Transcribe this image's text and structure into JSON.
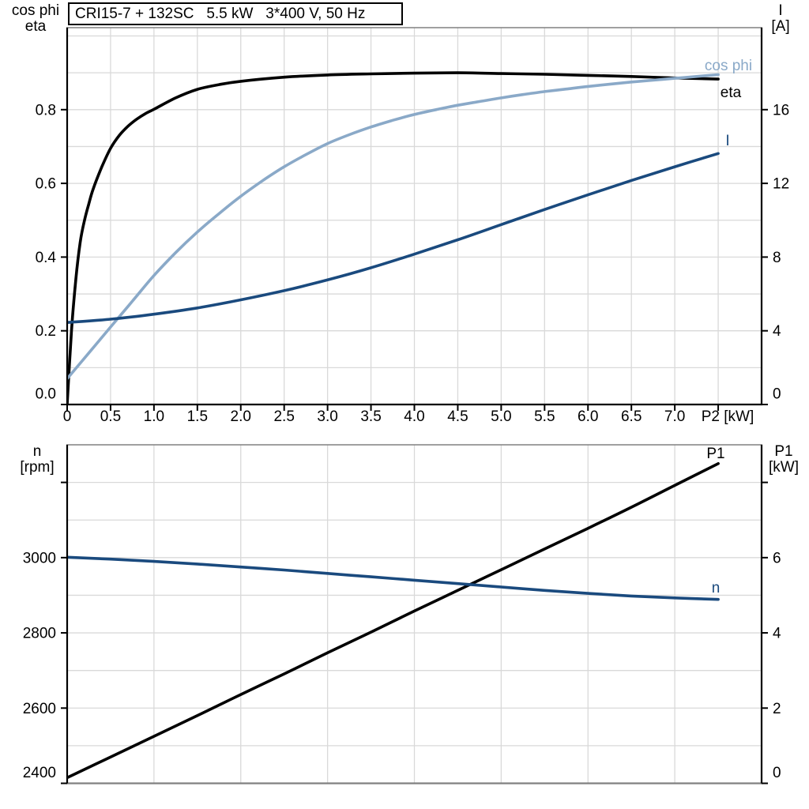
{
  "title": "CRI15-7 + 132SC   5.5 kW   3*400 V, 50 Hz",
  "colors": {
    "black": "#000000",
    "dark_blue": "#1a4a7e",
    "light_blue": "#8aa9c8",
    "grid": "#d9d9d9",
    "border": "#808080",
    "background": "#ffffff"
  },
  "chart_data": [
    {
      "type": "line",
      "id": "top",
      "title": "CRI15-7 + 132SC   5.5 kW   3*400 V, 50 Hz",
      "left_header": [
        "cos phi",
        "eta"
      ],
      "right_header": [
        "I",
        "[A]"
      ],
      "x_axis": {
        "label": "P2 [kW]",
        "min": 0,
        "max": 8,
        "tick_values": [
          0,
          0.5,
          1,
          1.5,
          2,
          2.5,
          3,
          3.5,
          4,
          4.5,
          5,
          5.5,
          6,
          6.5,
          7,
          7.5
        ],
        "tick_labels": [
          "0",
          "0.5",
          "1.0",
          "1.5",
          "2.0",
          "2.5",
          "3.0",
          "3.5",
          "4.0",
          "4.5",
          "5.0",
          "5.5",
          "6.0",
          "6.5",
          "7.0",
          ""
        ],
        "grid_step": 0.5
      },
      "y_left": {
        "min": 0,
        "max": 1.0225,
        "tick_values": [
          0,
          0.2,
          0.4,
          0.6,
          0.8
        ],
        "tick_labels": [
          "0.0",
          "0.2",
          "0.4",
          "0.6",
          "0.8"
        ],
        "grid_step": 0.1,
        "grid_max": 1.0
      },
      "y_right": {
        "min": 0,
        "max": 20.45,
        "tick_values": [
          0,
          4,
          8,
          12,
          16
        ],
        "tick_labels": [
          "0",
          "4",
          "8",
          "12",
          "16"
        ]
      },
      "series": [
        {
          "name": "eta",
          "label": "eta",
          "color": "black",
          "scale": "left",
          "x": [
            0,
            0.05,
            0.1,
            0.15,
            0.2,
            0.25,
            0.3,
            0.4,
            0.5,
            0.6,
            0.7,
            0.8,
            0.9,
            1.0,
            1.25,
            1.5,
            1.75,
            2.0,
            2.5,
            3.0,
            3.5,
            4.0,
            4.5,
            5.0,
            5.5,
            6.0,
            6.5,
            7.0,
            7.5
          ],
          "y": [
            0,
            0.2,
            0.34,
            0.44,
            0.5,
            0.545,
            0.585,
            0.645,
            0.695,
            0.73,
            0.755,
            0.774,
            0.789,
            0.801,
            0.832,
            0.855,
            0.868,
            0.877,
            0.888,
            0.894,
            0.897,
            0.899,
            0.9,
            0.898,
            0.896,
            0.893,
            0.89,
            0.886,
            0.883
          ]
        },
        {
          "name": "cosphi",
          "label": "cos phi",
          "color": "light_blue",
          "scale": "left",
          "x": [
            0,
            0.25,
            0.5,
            0.75,
            1.0,
            1.25,
            1.5,
            1.75,
            2.0,
            2.25,
            2.5,
            2.75,
            3.0,
            3.25,
            3.5,
            3.75,
            4.0,
            4.25,
            4.5,
            4.75,
            5.0,
            5.25,
            5.5,
            5.75,
            6.0,
            6.25,
            6.5,
            6.75,
            7.0,
            7.25,
            7.5
          ],
          "y": [
            0.07,
            0.14,
            0.21,
            0.28,
            0.35,
            0.412,
            0.468,
            0.518,
            0.565,
            0.607,
            0.645,
            0.678,
            0.708,
            0.732,
            0.753,
            0.771,
            0.787,
            0.8,
            0.812,
            0.822,
            0.832,
            0.841,
            0.849,
            0.856,
            0.863,
            0.869,
            0.875,
            0.88,
            0.885,
            0.89,
            0.895
          ]
        },
        {
          "name": "I",
          "label": "I",
          "color": "dark_blue",
          "scale": "right",
          "x": [
            0,
            0.5,
            1.0,
            1.5,
            2.0,
            2.5,
            3.0,
            3.5,
            4.0,
            4.5,
            5.0,
            5.5,
            6.0,
            6.5,
            7.0,
            7.5
          ],
          "y": [
            4.45,
            4.63,
            4.9,
            5.24,
            5.68,
            6.18,
            6.76,
            7.42,
            8.16,
            8.94,
            9.76,
            10.58,
            11.38,
            12.16,
            12.9,
            13.62
          ]
        }
      ]
    },
    {
      "type": "line",
      "id": "bottom",
      "left_header": [
        "n",
        "[rpm]"
      ],
      "right_header": [
        "P1",
        "[kW]"
      ],
      "x_axis": {
        "label": "",
        "min": 0,
        "max": 8,
        "tick_values": [],
        "tick_labels": [],
        "grid_step": 1.0
      },
      "y_left": {
        "min": 2400,
        "max": 3300,
        "tick_values": [
          2400,
          2600,
          2800,
          3000,
          3200
        ],
        "tick_labels": [
          "2400",
          "2600",
          "2800",
          "3000",
          ""
        ],
        "grid_step": 100,
        "grid_max": 3200
      },
      "y_right": {
        "min": 0,
        "max": 9,
        "tick_values": [
          0,
          2,
          4,
          6,
          8
        ],
        "tick_labels": [
          "0",
          "2",
          "4",
          "6",
          ""
        ]
      },
      "series": [
        {
          "name": "P1",
          "label": "P1",
          "color": "black",
          "scale": "right",
          "x": [
            0,
            0.5,
            1,
            1.5,
            2,
            2.5,
            3,
            3.5,
            4,
            4.5,
            5,
            5.5,
            6,
            6.5,
            7,
            7.5
          ],
          "y": [
            0.15,
            0.7,
            1.25,
            1.8,
            2.36,
            2.91,
            3.47,
            4.02,
            4.58,
            5.13,
            5.68,
            6.23,
            6.78,
            7.34,
            7.92,
            8.5
          ]
        },
        {
          "name": "n",
          "label": "n",
          "color": "dark_blue",
          "scale": "left",
          "x": [
            0,
            0.5,
            1,
            1.5,
            2,
            2.5,
            3,
            3.5,
            4,
            4.5,
            5,
            5.5,
            6,
            6.5,
            7,
            7.5
          ],
          "y": [
            3001,
            2996,
            2990,
            2983,
            2975,
            2967,
            2958,
            2949,
            2940,
            2931,
            2922,
            2913,
            2905,
            2898,
            2893,
            2889
          ]
        }
      ]
    }
  ]
}
